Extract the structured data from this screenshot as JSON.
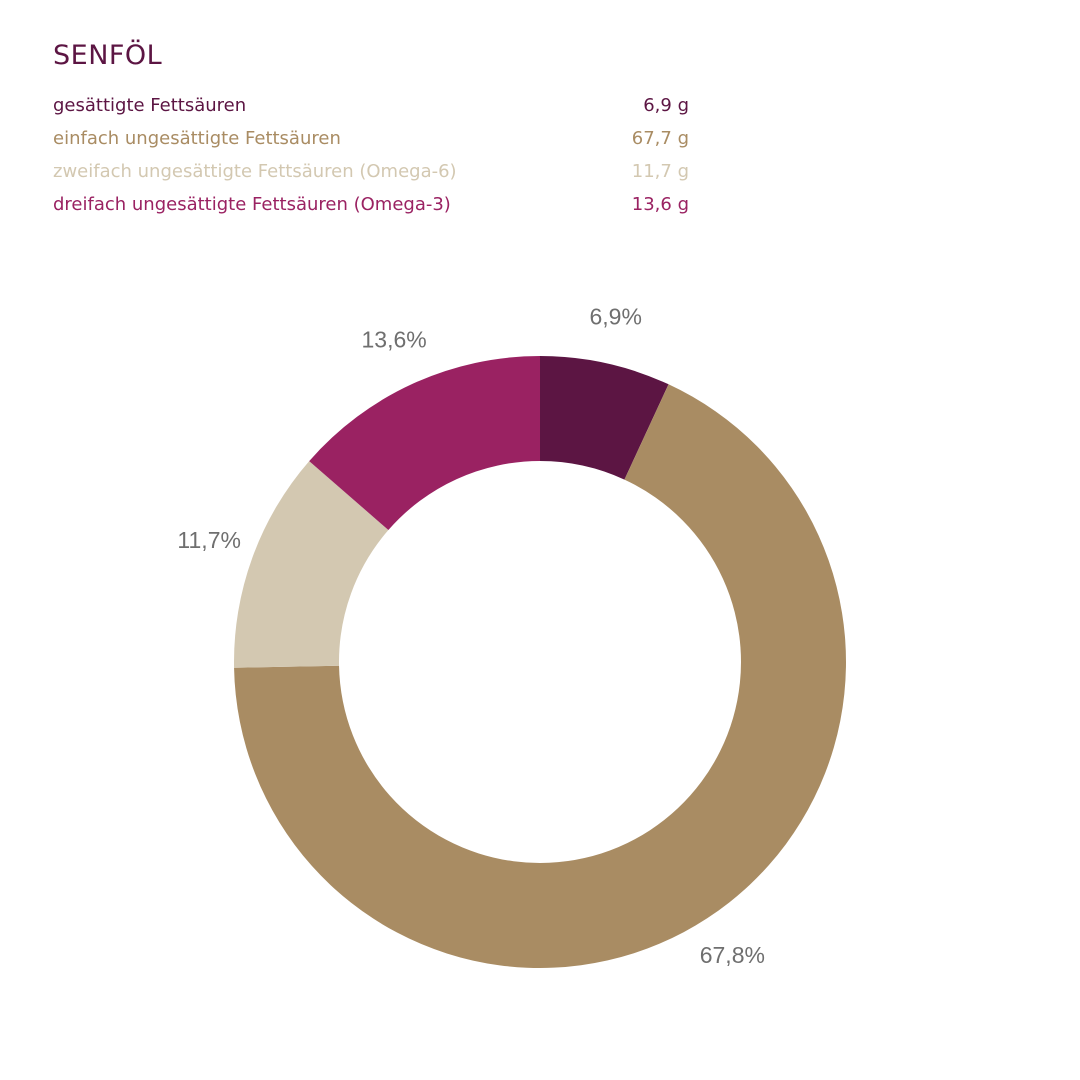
{
  "title": "SENFÖL",
  "legend": [
    {
      "label": "gesättigte Fettsäuren",
      "value": "6,9 g",
      "color": "#5c1543"
    },
    {
      "label": "einfach ungesättigte Fettsäuren",
      "value": "67,7 g",
      "color": "#a98c63"
    },
    {
      "label": "zweifach ungesättigte Fettsäuren (Omega-6)",
      "value": "11,7 g",
      "color": "#d3c8b1"
    },
    {
      "label": "dreifach ungesättigte Fettsäuren (Omega-3)",
      "value": "13,6 g",
      "color": "#9a2262"
    }
  ],
  "chart_data": {
    "type": "pie",
    "variant": "donut",
    "categories": [
      "gesättigte Fettsäuren",
      "einfach ungesättigte Fettsäuren",
      "zweifach ungesättigte Fettsäuren (Omega-6)",
      "dreifach ungesättigte Fettsäuren (Omega-3)"
    ],
    "values": [
      6.9,
      67.8,
      11.7,
      13.6
    ],
    "labels": [
      "6,9%",
      "67,8%",
      "11,7%",
      "13,6%"
    ],
    "colors": [
      "#5c1543",
      "#a98c63",
      "#d3c8b1",
      "#9a2262"
    ],
    "start": "top",
    "direction": "clockwise",
    "title": "SENFÖL"
  }
}
